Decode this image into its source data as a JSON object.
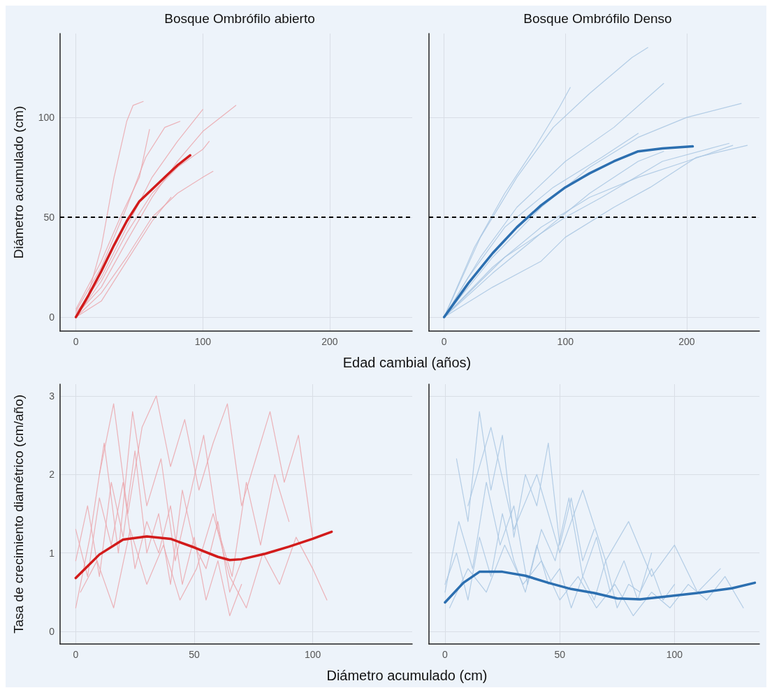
{
  "chart_data": [
    {
      "type": "line",
      "title": "Bosque Ombrófilo abierto",
      "xlabel": "Edad cambial (años)",
      "ylabel": "Diámetro acumulado (cm)",
      "xlim": [
        -12.5,
        265
      ],
      "ylim": [
        -7,
        142
      ],
      "xticks": [
        0,
        100,
        200
      ],
      "yticks": [
        0,
        50,
        100
      ],
      "grid": true,
      "ref_lines": [
        {
          "axis": "y",
          "value": 50,
          "color": "#000000",
          "line_style": "dashed"
        }
      ],
      "series": [
        {
          "color": "#d21b1b",
          "x": [
            0,
            10,
            20,
            30,
            40,
            50,
            60,
            70,
            80,
            90
          ],
          "values": [
            0,
            11,
            23,
            36,
            48,
            58,
            64,
            70,
            76,
            81
          ]
        },
        {
          "color": "#eba6ab",
          "x": [
            0,
            10,
            20,
            30,
            40,
            45,
            53
          ],
          "values": [
            0,
            12,
            35,
            70,
            98,
            106,
            108
          ]
        },
        {
          "color": "#eba6ab",
          "x": [
            0,
            20,
            40,
            55,
            70,
            82
          ],
          "values": [
            3,
            25,
            55,
            80,
            95,
            98
          ]
        },
        {
          "color": "#eba6ab",
          "x": [
            0,
            20,
            40,
            60,
            80,
            100
          ],
          "values": [
            2,
            20,
            45,
            70,
            88,
            104
          ]
        },
        {
          "color": "#eba6ab",
          "x": [
            0,
            20,
            40,
            60,
            80,
            100,
            126
          ],
          "values": [
            1,
            15,
            38,
            60,
            78,
            93,
            106
          ]
        },
        {
          "color": "#eba6ab",
          "x": [
            0,
            20,
            40,
            60,
            80,
            100,
            108
          ],
          "values": [
            0,
            12,
            30,
            50,
            62,
            70,
            73
          ]
        },
        {
          "color": "#eba6ab",
          "x": [
            0,
            20,
            40,
            60,
            75
          ],
          "values": [
            0,
            8,
            28,
            48,
            60
          ]
        },
        {
          "color": "#eba6ab",
          "x": [
            0,
            20,
            35,
            50,
            58
          ],
          "values": [
            4,
            28,
            50,
            70,
            94
          ]
        },
        {
          "color": "#eba6ab",
          "x": [
            0,
            20,
            40,
            60,
            80,
            100,
            105
          ],
          "values": [
            0,
            18,
            42,
            62,
            75,
            84,
            88
          ]
        }
      ]
    },
    {
      "type": "line",
      "title": "Bosque Ombrófilo Denso",
      "xlim": [
        -12.5,
        260
      ],
      "ylim": [
        -7,
        142
      ],
      "xticks": [
        0,
        100,
        200
      ],
      "yticks": [
        0,
        50,
        100
      ],
      "grid": true,
      "tick_labels": "x",
      "ref_lines": [
        {
          "axis": "y",
          "value": 50,
          "color": "#000000",
          "line_style": "dashed"
        }
      ],
      "series": [
        {
          "color": "#2c6fb0",
          "x": [
            0,
            20,
            40,
            60,
            80,
            100,
            120,
            140,
            160,
            180,
            205
          ],
          "values": [
            0,
            17,
            32,
            45,
            56,
            65,
            72,
            78,
            83,
            84.5,
            85.5
          ]
        },
        {
          "color": "#a8c5e2",
          "x": [
            0,
            30,
            60,
            90,
            120,
            155,
            168
          ],
          "values": [
            0,
            40,
            70,
            95,
            112,
            130,
            135
          ]
        },
        {
          "color": "#a8c5e2",
          "x": [
            0,
            25,
            50,
            75,
            95,
            104
          ],
          "values": [
            0,
            35,
            62,
            85,
            105,
            115
          ]
        },
        {
          "color": "#a8c5e2",
          "x": [
            0,
            40,
            80,
            120,
            160,
            200,
            245
          ],
          "values": [
            0,
            30,
            55,
            75,
            90,
            100,
            107
          ]
        },
        {
          "color": "#a8c5e2",
          "x": [
            0,
            40,
            80,
            120,
            160,
            200,
            238
          ],
          "values": [
            0,
            25,
            45,
            60,
            70,
            78,
            86
          ]
        },
        {
          "color": "#a8c5e2",
          "x": [
            0,
            40,
            80,
            100,
            140,
            170,
            208,
            250
          ],
          "values": [
            0,
            15,
            28,
            40,
            55,
            65,
            80,
            86
          ]
        },
        {
          "color": "#a8c5e2",
          "x": [
            0,
            40,
            80,
            120,
            160,
            181
          ],
          "values": [
            0,
            22,
            42,
            62,
            78,
            83
          ]
        },
        {
          "color": "#a8c5e2",
          "x": [
            0,
            30,
            60,
            100,
            140,
            181
          ],
          "values": [
            0,
            30,
            55,
            78,
            95,
            117
          ]
        },
        {
          "color": "#a8c5e2",
          "x": [
            0,
            50,
            100,
            130,
            180,
            235
          ],
          "values": [
            0,
            30,
            50,
            60,
            78,
            87
          ]
        },
        {
          "color": "#a8c5e2",
          "x": [
            0,
            20,
            50,
            90,
            130,
            160
          ],
          "values": [
            0,
            20,
            45,
            65,
            80,
            92
          ]
        }
      ]
    },
    {
      "type": "line",
      "xlabel": "Diámetro acumulado (cm)",
      "ylabel": "Tasa de crecimiento diamétrico (cm/año)",
      "xlim": [
        -6.6,
        142
      ],
      "ylim": [
        -0.16,
        3.15
      ],
      "xticks": [
        0,
        50,
        100
      ],
      "yticks": [
        0,
        1,
        2,
        3
      ],
      "grid": true,
      "series": [
        {
          "color": "#d21b1b",
          "x": [
            0,
            10,
            20,
            30,
            40,
            50,
            60,
            65,
            70,
            80,
            90,
            100,
            108
          ],
          "values": [
            0.68,
            0.98,
            1.17,
            1.21,
            1.18,
            1.07,
            0.95,
            0.91,
            0.92,
            0.99,
            1.08,
            1.18,
            1.27
          ]
        },
        {
          "color": "#eba6ab",
          "x": [
            0,
            5,
            10,
            15,
            20,
            25,
            30,
            35,
            40,
            45,
            50,
            55,
            60,
            65,
            70
          ],
          "values": [
            0.9,
            1.6,
            0.7,
            1.9,
            1.2,
            2.3,
            1.0,
            1.5,
            0.6,
            1.8,
            1.1,
            0.8,
            1.4,
            0.5,
            0.9
          ]
        },
        {
          "color": "#eba6ab",
          "x": [
            0,
            6,
            12,
            18,
            24,
            30,
            36,
            42,
            48,
            54,
            60,
            66,
            72,
            78,
            84,
            90
          ],
          "values": [
            0.3,
            1.2,
            2.4,
            1.0,
            2.8,
            1.6,
            2.2,
            0.9,
            1.7,
            2.5,
            1.3,
            0.7,
            1.9,
            1.1,
            2.0,
            1.4
          ]
        },
        {
          "color": "#eba6ab",
          "x": [
            2,
            9,
            16,
            23,
            30,
            37,
            44,
            51,
            58,
            65,
            72,
            79,
            86,
            93,
            100,
            106
          ],
          "values": [
            0.5,
            0.9,
            0.3,
            1.3,
            0.6,
            1.1,
            0.4,
            0.8,
            1.5,
            0.7,
            0.3,
            1.0,
            0.6,
            1.2,
            0.8,
            0.4
          ]
        },
        {
          "color": "#eba6ab",
          "x": [
            10,
            16,
            22,
            28,
            34,
            40,
            46,
            52,
            58,
            64,
            70,
            76,
            82,
            88,
            94,
            100
          ],
          "values": [
            2.0,
            2.9,
            1.5,
            2.6,
            3.0,
            2.1,
            2.7,
            1.8,
            2.4,
            2.9,
            1.6,
            2.2,
            2.8,
            1.9,
            2.5,
            1.2
          ]
        },
        {
          "color": "#eba6ab",
          "x": [
            0,
            5,
            10,
            15,
            20,
            25,
            30,
            35,
            40,
            45,
            50,
            55,
            60,
            65,
            70
          ],
          "values": [
            1.3,
            0.7,
            1.7,
            1.1,
            1.9,
            0.8,
            1.4,
            1.0,
            1.6,
            0.6,
            1.2,
            0.4,
            0.9,
            0.2,
            0.6
          ]
        }
      ]
    },
    {
      "type": "line",
      "xlim": [
        -7,
        137
      ],
      "ylim": [
        -0.16,
        3.15
      ],
      "xticks": [
        0,
        50,
        100
      ],
      "yticks": [
        0,
        1,
        2,
        3
      ],
      "grid": true,
      "tick_labels": "x",
      "series": [
        {
          "color": "#2c6fb0",
          "x": [
            0,
            8,
            15,
            25,
            35,
            45,
            55,
            65,
            75,
            85,
            95,
            110,
            125,
            135
          ],
          "values": [
            0.37,
            0.62,
            0.76,
            0.76,
            0.71,
            0.62,
            0.54,
            0.49,
            0.42,
            0.41,
            0.44,
            0.49,
            0.55,
            0.62
          ]
        },
        {
          "color": "#a8c5e2",
          "x": [
            0,
            6,
            12,
            18,
            24,
            30,
            36,
            42,
            48,
            54,
            60,
            66,
            72,
            78,
            84,
            90
          ],
          "values": [
            0.5,
            1.4,
            0.8,
            1.9,
            1.1,
            1.6,
            0.6,
            1.3,
            0.9,
            1.7,
            0.7,
            1.2,
            0.5,
            0.9,
            0.4,
            1.0
          ]
        },
        {
          "color": "#a8c5e2",
          "x": [
            2,
            10,
            18,
            26,
            34,
            42,
            50,
            58,
            66,
            74,
            82,
            90,
            98,
            106,
            114,
            122,
            130
          ],
          "values": [
            0.3,
            0.8,
            0.5,
            1.1,
            0.6,
            0.9,
            0.4,
            0.7,
            0.3,
            0.6,
            0.2,
            0.5,
            0.3,
            0.6,
            0.4,
            0.7,
            0.3
          ]
        },
        {
          "color": "#a8c5e2",
          "x": [
            5,
            10,
            15,
            20,
            25,
            30,
            35,
            40,
            45,
            50,
            55,
            60,
            65
          ],
          "values": [
            2.2,
            1.4,
            2.8,
            1.8,
            2.5,
            1.2,
            2.0,
            1.6,
            2.4,
            1.1,
            1.7,
            0.9,
            1.3
          ]
        },
        {
          "color": "#a8c5e2",
          "x": [
            0,
            5,
            10,
            15,
            20,
            25,
            30,
            35,
            40,
            45,
            50,
            55,
            60,
            65,
            70,
            75,
            80,
            85,
            90,
            95,
            100
          ],
          "values": [
            0.6,
            1.0,
            0.4,
            1.2,
            0.7,
            1.5,
            0.9,
            0.5,
            1.1,
            0.6,
            0.8,
            0.3,
            0.7,
            0.4,
            0.9,
            0.3,
            0.6,
            0.5,
            0.8,
            0.4,
            0.6
          ]
        },
        {
          "color": "#a8c5e2",
          "x": [
            10,
            20,
            30,
            40,
            50,
            60,
            70,
            80,
            90,
            100,
            110,
            120
          ],
          "values": [
            1.6,
            2.6,
            1.3,
            2.0,
            1.0,
            1.8,
            0.9,
            1.4,
            0.7,
            1.1,
            0.5,
            0.8
          ]
        }
      ]
    }
  ]
}
